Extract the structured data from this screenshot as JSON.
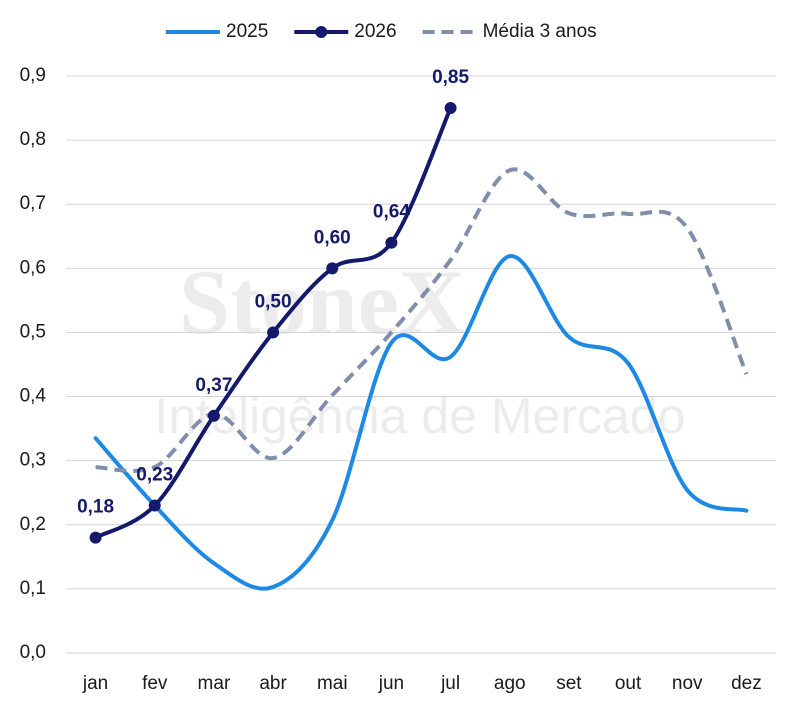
{
  "chart_data": {
    "type": "line",
    "watermark": [
      "StoneX",
      "Inteligência de Mercado"
    ],
    "categories": [
      "jan",
      "fev",
      "mar",
      "abr",
      "mai",
      "jun",
      "jul",
      "ago",
      "set",
      "out",
      "nov",
      "dez"
    ],
    "series": [
      {
        "name": "2025",
        "color": "#1e88e5",
        "dash": false,
        "marker": false,
        "values": [
          0.335,
          0.23,
          0.14,
          0.103,
          0.207,
          0.484,
          0.462,
          0.619,
          0.493,
          0.452,
          0.254,
          0.222
        ]
      },
      {
        "name": "2026",
        "color": "#14196b",
        "dash": false,
        "marker": true,
        "values": [
          0.18,
          0.23,
          0.37,
          0.5,
          0.6,
          0.64,
          0.85,
          null,
          null,
          null,
          null,
          null
        ],
        "value_labels": [
          "0,18",
          "0,23",
          "0,37",
          "0,50",
          "0,60",
          "0,64",
          "0,85",
          null,
          null,
          null,
          null,
          null
        ]
      },
      {
        "name": "Média 3 anos",
        "color": "#7f8fab",
        "dash": true,
        "marker": false,
        "values": [
          0.29,
          0.29,
          0.373,
          0.304,
          0.402,
          0.5,
          0.613,
          0.753,
          0.686,
          0.685,
          0.663,
          0.435
        ]
      }
    ],
    "ylim": [
      0,
      0.9
    ],
    "yticks": [
      {
        "value": 0,
        "label": "0,0"
      },
      {
        "value": 0.1,
        "label": "0,1"
      },
      {
        "value": 0.2,
        "label": "0,2"
      },
      {
        "value": 0.3,
        "label": "0,3"
      },
      {
        "value": 0.4,
        "label": "0,4"
      },
      {
        "value": 0.5,
        "label": "0,5"
      },
      {
        "value": 0.6,
        "label": "0,6"
      },
      {
        "value": 0.7,
        "label": "0,7"
      },
      {
        "value": 0.8,
        "label": "0,8"
      },
      {
        "value": 0.9,
        "label": "0,9"
      }
    ],
    "grid": true,
    "legend": "top"
  }
}
